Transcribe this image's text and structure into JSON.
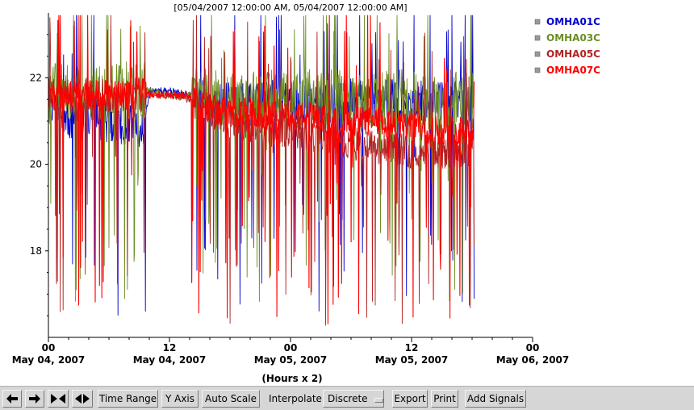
{
  "chart_data": {
    "type": "line",
    "title": "[05/04/2007 12:00:00 AM, 05/04/2007 12:00:00 AM]",
    "xlabel": "(Hours x 2)",
    "ylabel": "",
    "x_unit": "hours since May 04, 2007 00:00",
    "xlim": [
      0,
      48
    ],
    "ylim": [
      16,
      23.5
    ],
    "y_ticks": [
      18,
      20,
      22
    ],
    "x_ticks": [
      {
        "value": 0,
        "top": "00",
        "bottom": "May 04, 2007"
      },
      {
        "value": 12,
        "top": "12",
        "bottom": "May 04, 2007"
      },
      {
        "value": 24,
        "top": "00",
        "bottom": "May 05, 2007"
      },
      {
        "value": 36,
        "top": "12",
        "bottom": "May 05, 2007"
      },
      {
        "value": 48,
        "top": "00",
        "bottom": "May 06, 2007"
      }
    ],
    "legend_position": "top-right",
    "grid": false,
    "series": [
      {
        "name": "OMHA01C",
        "color": "#0000cc",
        "x": [
          0,
          2,
          4,
          6,
          8,
          9.5,
          10,
          12,
          14,
          16,
          18,
          20,
          22,
          24,
          26,
          28,
          30,
          32,
          34,
          36,
          38,
          40,
          42,
          42.2
        ],
        "y": [
          21.6,
          21.0,
          21.1,
          21.0,
          20.9,
          20.9,
          21.7,
          21.7,
          21.6,
          21.4,
          21.4,
          21.4,
          21.5,
          21.4,
          21.4,
          21.4,
          21.5,
          21.4,
          21.5,
          21.4,
          21.5,
          21.5,
          21.5,
          21.5
        ],
        "noise_amplitude": 0.5,
        "dip_min": 16.5
      },
      {
        "name": "OMHA03C",
        "color": "#6b8e23",
        "x": [
          0,
          2,
          4,
          6,
          8,
          9.5,
          10,
          12,
          14,
          16,
          18,
          20,
          22,
          24,
          26,
          28,
          30,
          32,
          34,
          36,
          38,
          40,
          42,
          42.2
        ],
        "y": [
          21.6,
          21.7,
          21.6,
          21.6,
          21.7,
          21.7,
          21.7,
          21.6,
          21.6,
          21.5,
          21.5,
          21.5,
          21.5,
          21.5,
          21.5,
          21.5,
          21.5,
          21.4,
          21.5,
          21.5,
          21.4,
          21.5,
          21.5,
          21.5
        ],
        "noise_amplitude": 0.7,
        "dip_min": 16.8
      },
      {
        "name": "OMHA05C",
        "color": "#b22222",
        "x": [
          0,
          2,
          4,
          6,
          8,
          9.5,
          10,
          12,
          14,
          16,
          18,
          20,
          22,
          24,
          26,
          28,
          30,
          32,
          34,
          36,
          38,
          40,
          42,
          42.2
        ],
        "y": [
          21.6,
          21.6,
          21.6,
          21.6,
          21.6,
          21.6,
          21.6,
          21.6,
          21.5,
          21.2,
          21.0,
          20.9,
          20.8,
          20.8,
          20.7,
          20.6,
          20.5,
          20.4,
          20.4,
          20.3,
          20.3,
          20.3,
          20.3,
          20.3
        ],
        "noise_amplitude": 0.4,
        "dip_min": 16.2
      },
      {
        "name": "OMHA07C",
        "color": "#ff0000",
        "x": [
          0,
          2,
          4,
          6,
          8,
          9.5,
          10,
          12,
          14,
          16,
          18,
          20,
          22,
          24,
          26,
          28,
          30,
          32,
          34,
          36,
          38,
          40,
          42,
          42.2
        ],
        "y": [
          21.6,
          21.6,
          21.6,
          21.6,
          21.6,
          21.7,
          21.6,
          21.6,
          21.6,
          21.3,
          21.2,
          21.2,
          21.1,
          21.1,
          21.1,
          21.0,
          21.0,
          21.0,
          20.9,
          20.9,
          20.8,
          20.8,
          20.8,
          20.8
        ],
        "noise_amplitude": 0.35,
        "dip_min": 16.0
      }
    ]
  },
  "toolbar": {
    "time_range": "Time Range",
    "y_axis": "Y Axis",
    "auto_scale": "Auto Scale",
    "interpolate_label": "Interpolate:",
    "interpolate_value": "Discrete",
    "export": "Export",
    "print": "Print",
    "add_signals": "Add Signals"
  }
}
